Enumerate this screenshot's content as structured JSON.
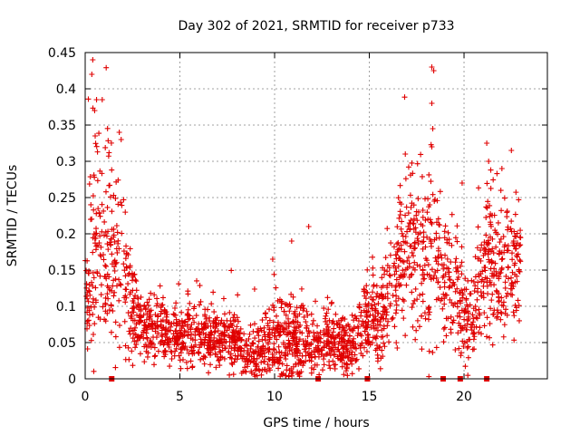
{
  "chart_data": {
    "type": "scatter",
    "title": "Day 302 of 2021, SRMTID for receiver p733",
    "xlabel": "GPS time / hours",
    "ylabel": "SRMTID / TECUs",
    "xlim": [
      0,
      24.4
    ],
    "ylim": [
      0,
      0.45
    ],
    "xticks": [
      0,
      5,
      10,
      15,
      20
    ],
    "xtick_labels": [
      "0",
      "5",
      "10",
      "15",
      "20"
    ],
    "yticks": [
      0,
      0.05,
      0.1,
      0.15,
      0.2,
      0.25,
      0.3,
      0.35,
      0.4,
      0.45
    ],
    "ytick_labels": [
      "0",
      "0.05",
      "0.1",
      "0.15",
      "0.2",
      "0.25",
      "0.3",
      "0.35",
      "0.4",
      "0.45"
    ],
    "grid": true,
    "marker": "+",
    "color": "#e00000",
    "gap_markers_x": [
      1.4,
      12.3,
      14.9,
      18.9,
      19.8,
      21.2
    ],
    "envelope": {
      "hours": [
        0,
        0.5,
        1,
        1.5,
        2,
        2.5,
        3,
        4,
        5,
        6,
        7,
        8,
        8.5,
        9,
        10,
        11,
        12,
        13,
        14,
        14.5,
        15,
        15.5,
        16,
        16.5,
        17,
        17.5,
        18,
        18.5,
        19,
        19.5,
        20,
        20.5,
        21,
        21.5,
        22,
        22.5,
        23
      ],
      "base": [
        0.14,
        0.18,
        0.16,
        0.17,
        0.15,
        0.09,
        0.075,
        0.065,
        0.06,
        0.06,
        0.055,
        0.05,
        0.035,
        0.04,
        0.055,
        0.05,
        0.045,
        0.05,
        0.045,
        0.06,
        0.09,
        0.07,
        0.11,
        0.15,
        0.18,
        0.17,
        0.15,
        0.16,
        0.14,
        0.13,
        0.09,
        0.08,
        0.15,
        0.16,
        0.14,
        0.15,
        0.16
      ],
      "spread": [
        0.08,
        0.12,
        0.1,
        0.1,
        0.08,
        0.05,
        0.04,
        0.03,
        0.03,
        0.03,
        0.03,
        0.03,
        0.025,
        0.035,
        0.045,
        0.04,
        0.03,
        0.03,
        0.03,
        0.04,
        0.05,
        0.04,
        0.06,
        0.08,
        0.08,
        0.08,
        0.1,
        0.1,
        0.07,
        0.06,
        0.05,
        0.04,
        0.08,
        0.08,
        0.07,
        0.07,
        0.06
      ]
    },
    "peaks": [
      {
        "x": 0.4,
        "y": 0.44
      },
      {
        "x": 0.35,
        "y": 0.42
      },
      {
        "x": 0.6,
        "y": 0.385
      },
      {
        "x": 0.9,
        "y": 0.385
      },
      {
        "x": 0.5,
        "y": 0.37
      },
      {
        "x": 1.8,
        "y": 0.34
      },
      {
        "x": 1.9,
        "y": 0.33
      },
      {
        "x": 10.9,
        "y": 0.19
      },
      {
        "x": 11.8,
        "y": 0.21
      },
      {
        "x": 9.9,
        "y": 0.165
      },
      {
        "x": 18.3,
        "y": 0.43
      },
      {
        "x": 18.4,
        "y": 0.425
      },
      {
        "x": 18.3,
        "y": 0.38
      },
      {
        "x": 18.35,
        "y": 0.345
      },
      {
        "x": 18.3,
        "y": 0.32
      },
      {
        "x": 16.9,
        "y": 0.31
      },
      {
        "x": 21.2,
        "y": 0.325
      },
      {
        "x": 22.5,
        "y": 0.315
      },
      {
        "x": 19.9,
        "y": 0.27
      },
      {
        "x": 21.3,
        "y": 0.3
      },
      {
        "x": 22.0,
        "y": 0.29
      }
    ],
    "n_points": 2200
  }
}
